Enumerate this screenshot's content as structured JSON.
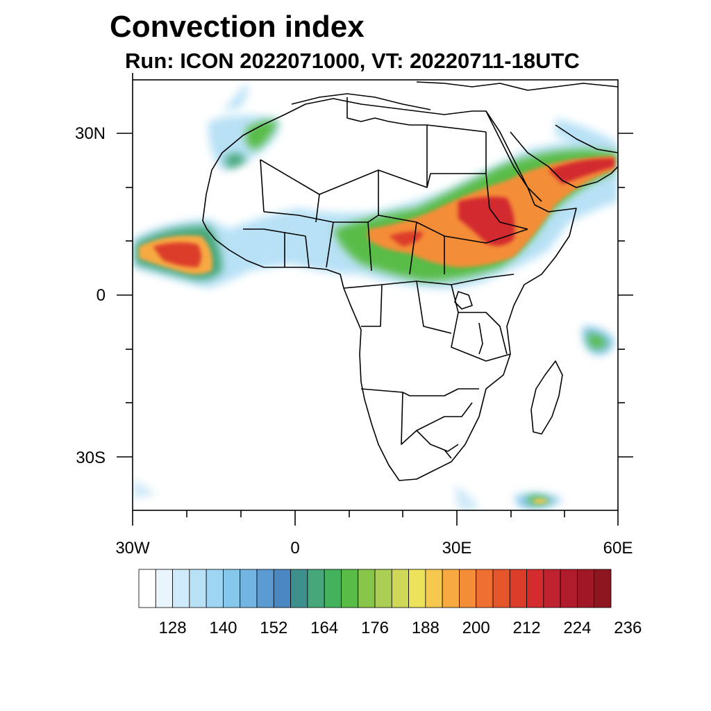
{
  "title": "Convection index",
  "subtitle": "Run: ICON 2022071000,  VT: 20220711-18UTC",
  "map": {
    "region": "Africa",
    "lat_labels": [
      "30N",
      "0",
      "30S"
    ],
    "lon_labels": [
      "30W",
      "0",
      "30E",
      "60E"
    ]
  },
  "colorbar": {
    "colors": [
      "#ffffff",
      "#e8f5fc",
      "#cfeaf8",
      "#b8e1f6",
      "#9ed5f3",
      "#86c7ec",
      "#72b4e2",
      "#5c9bd2",
      "#4a87c3",
      "#3f8f8f",
      "#46a77a",
      "#44b15d",
      "#58bc46",
      "#88c64b",
      "#abcf54",
      "#cfd957",
      "#ece25b",
      "#f6c84f",
      "#f7aa42",
      "#f48d38",
      "#ef6f30",
      "#e5552b",
      "#dc3d2b",
      "#d22c2f",
      "#c1222f",
      "#b01c2b",
      "#a01826",
      "#8e1620"
    ],
    "labels": [
      "128",
      "140",
      "152",
      "164",
      "176",
      "188",
      "200",
      "212",
      "224",
      "236"
    ]
  }
}
